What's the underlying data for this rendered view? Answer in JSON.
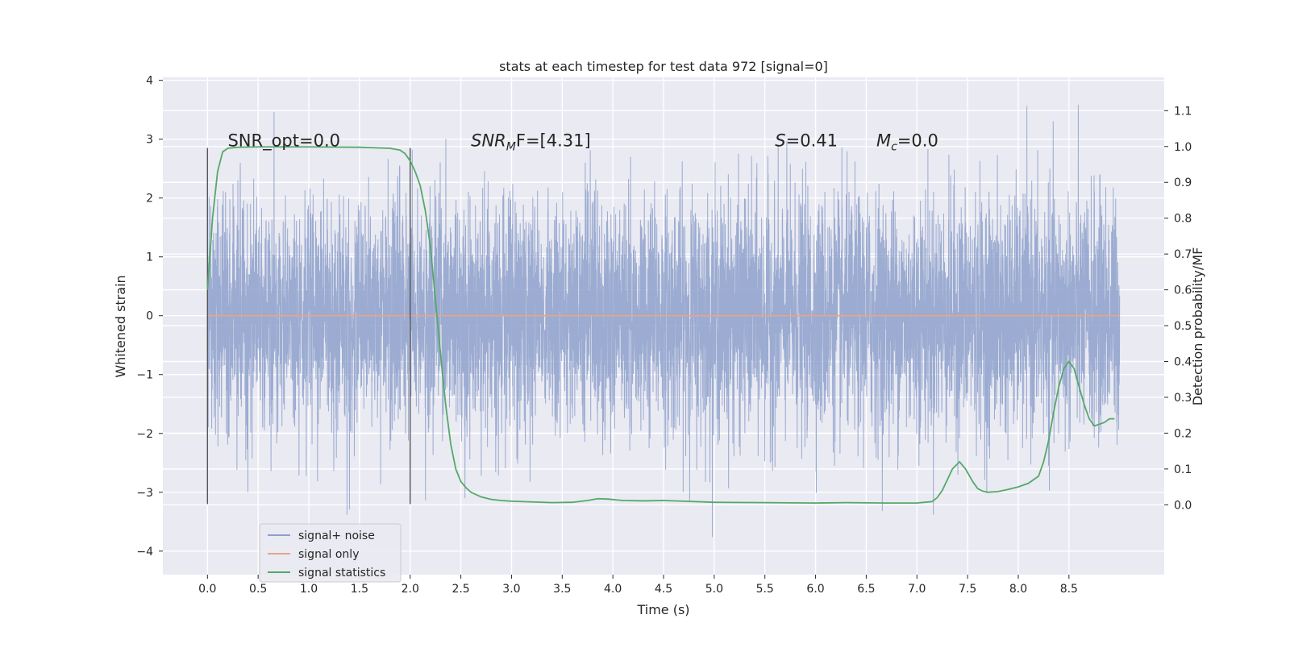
{
  "chart_data": {
    "type": "line",
    "title": "stats at each timestep for test data 972 [signal=0]",
    "xlabel": "Time (s)",
    "ylabel": "Whitened strain",
    "y2label": "Detection probability/MF",
    "xlim": [
      -0.44,
      9.44
    ],
    "ylim": [
      -4.4,
      4.05
    ],
    "y2lim": [
      -0.195,
      1.193
    ],
    "x_ticks": [
      0.0,
      0.5,
      1.0,
      1.5,
      2.0,
      2.5,
      3.0,
      3.5,
      4.0,
      4.5,
      5.0,
      5.5,
      6.0,
      6.5,
      7.0,
      7.5,
      8.0,
      8.5
    ],
    "x_tick_labels": [
      "0.0",
      "0.5",
      "1.0",
      "1.5",
      "2.0",
      "2.5",
      "3.0",
      "3.5",
      "4.0",
      "4.5",
      "5.0",
      "5.5",
      "6.0",
      "6.5",
      "7.0",
      "7.5",
      "8.0",
      "8.5"
    ],
    "y_ticks": [
      -4,
      -3,
      -2,
      -1,
      0,
      1,
      2,
      3,
      4
    ],
    "y_tick_labels": [
      "−4",
      "−3",
      "−2",
      "−1",
      "0",
      "1",
      "2",
      "3",
      "4"
    ],
    "y2_ticks": [
      0.0,
      0.1,
      0.2,
      0.3,
      0.4,
      0.5,
      0.6,
      0.7,
      0.8,
      0.9,
      1.0,
      1.1
    ],
    "y2_tick_labels": [
      "0.0",
      "0.1",
      "0.2",
      "0.3",
      "0.4",
      "0.5",
      "0.6",
      "0.7",
      "0.8",
      "0.9",
      "1.0",
      "1.1"
    ],
    "grid": true,
    "legend_position": "lower-left",
    "legend": [
      "signal+ noise",
      "signal only",
      "signal statistics"
    ],
    "series": [
      {
        "name": "signal+ noise",
        "color": "#8da0cb",
        "axis": "left",
        "kind": "noise",
        "x_range": [
          0.0,
          9.0
        ],
        "std": 1.0,
        "min_approx": -4.05,
        "max_approx": 3.65
      },
      {
        "name": "signal only",
        "color": "#e8a48a",
        "axis": "left",
        "x": [
          0.0,
          9.0
        ],
        "y": [
          0.0,
          0.0
        ]
      },
      {
        "name": "signal statistics",
        "color": "#55a868",
        "axis": "right",
        "x": [
          0.0,
          0.05,
          0.1,
          0.15,
          0.2,
          0.3,
          0.5,
          1.0,
          1.5,
          1.8,
          1.9,
          1.95,
          2.0,
          2.05,
          2.1,
          2.15,
          2.2,
          2.25,
          2.3,
          2.35,
          2.4,
          2.45,
          2.5,
          2.55,
          2.6,
          2.7,
          2.8,
          2.9,
          3.0,
          3.2,
          3.4,
          3.6,
          3.75,
          3.85,
          3.95,
          4.1,
          4.3,
          4.5,
          4.7,
          5.0,
          5.5,
          6.0,
          6.3,
          6.7,
          7.0,
          7.15,
          7.2,
          7.25,
          7.3,
          7.35,
          7.42,
          7.48,
          7.55,
          7.6,
          7.65,
          7.7,
          7.8,
          7.9,
          8.0,
          8.1,
          8.2,
          8.25,
          8.3,
          8.35,
          8.4,
          8.45,
          8.5,
          8.55,
          8.6,
          8.65,
          8.7,
          8.75,
          8.8,
          8.85,
          8.9,
          8.95
        ],
        "y": [
          0.6,
          0.8,
          0.93,
          0.985,
          0.995,
          0.998,
          0.999,
          0.999,
          0.998,
          0.995,
          0.99,
          0.98,
          0.96,
          0.93,
          0.89,
          0.82,
          0.72,
          0.57,
          0.42,
          0.28,
          0.17,
          0.1,
          0.065,
          0.048,
          0.035,
          0.022,
          0.015,
          0.012,
          0.01,
          0.008,
          0.006,
          0.007,
          0.012,
          0.017,
          0.016,
          0.012,
          0.011,
          0.012,
          0.01,
          0.007,
          0.006,
          0.005,
          0.006,
          0.005,
          0.005,
          0.009,
          0.02,
          0.04,
          0.07,
          0.1,
          0.12,
          0.1,
          0.065,
          0.045,
          0.038,
          0.035,
          0.037,
          0.043,
          0.05,
          0.06,
          0.08,
          0.12,
          0.18,
          0.26,
          0.33,
          0.38,
          0.4,
          0.38,
          0.33,
          0.28,
          0.24,
          0.22,
          0.225,
          0.23,
          0.24,
          0.24
        ]
      }
    ],
    "vlines": [
      {
        "x": 0.0,
        "y_from": -3.2,
        "y_to": 2.85,
        "color": "#555555"
      },
      {
        "x": 2.0,
        "y_from": -3.2,
        "y_to": 2.85,
        "color": "#555555"
      }
    ],
    "annotations": [
      {
        "prefix": "SNR_opt",
        "sub": "",
        "suffix": "=0.0",
        "italic": false,
        "x": 0.2,
        "y": 2.88
      },
      {
        "prefix": "SNR",
        "sub": "M",
        "suffix": "F=[4.31]",
        "italic": true,
        "x": 2.6,
        "y": 2.88
      },
      {
        "prefix": "S",
        "sub": "",
        "suffix": "=0.41",
        "italic": true,
        "x": 5.6,
        "y": 2.88
      },
      {
        "prefix": "M",
        "sub": "c",
        "suffix": "=0.0",
        "italic": true,
        "x": 6.6,
        "y": 2.88
      }
    ]
  }
}
